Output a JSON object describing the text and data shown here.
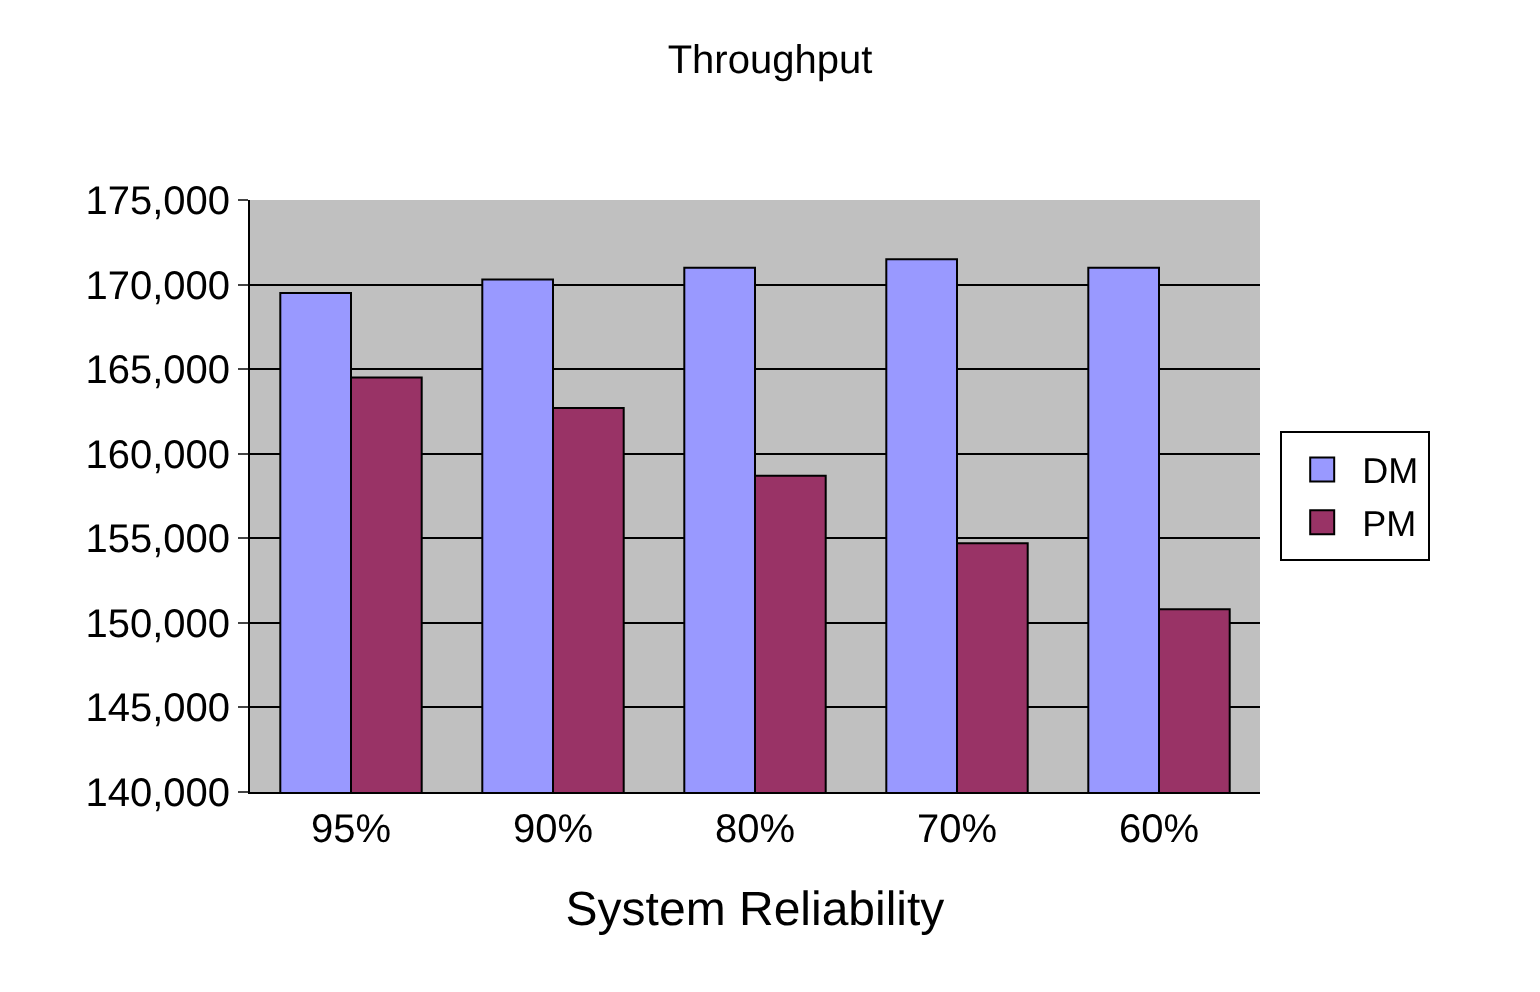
{
  "chart_data": {
    "type": "bar",
    "title": "Throughput",
    "xlabel": "System Reliability",
    "categories": [
      "95%",
      "90%",
      "80%",
      "70%",
      "60%"
    ],
    "series": [
      {
        "name": "DM",
        "color": "#9999ff",
        "values": [
          169500,
          170300,
          171000,
          171500,
          171000
        ]
      },
      {
        "name": "PM",
        "color": "#993366",
        "values": [
          164500,
          162700,
          158700,
          154700,
          150800
        ]
      }
    ],
    "ylim": [
      140000,
      175000
    ],
    "yticks": [
      {
        "value": 140000,
        "label": "140,000"
      },
      {
        "value": 145000,
        "label": "145,000"
      },
      {
        "value": 150000,
        "label": "150,000"
      },
      {
        "value": 155000,
        "label": "155,000"
      },
      {
        "value": 160000,
        "label": "160,000"
      },
      {
        "value": 165000,
        "label": "165,000"
      },
      {
        "value": 170000,
        "label": "170,000"
      },
      {
        "value": 175000,
        "label": "175,000"
      }
    ],
    "grid": "y",
    "legend": "right"
  }
}
